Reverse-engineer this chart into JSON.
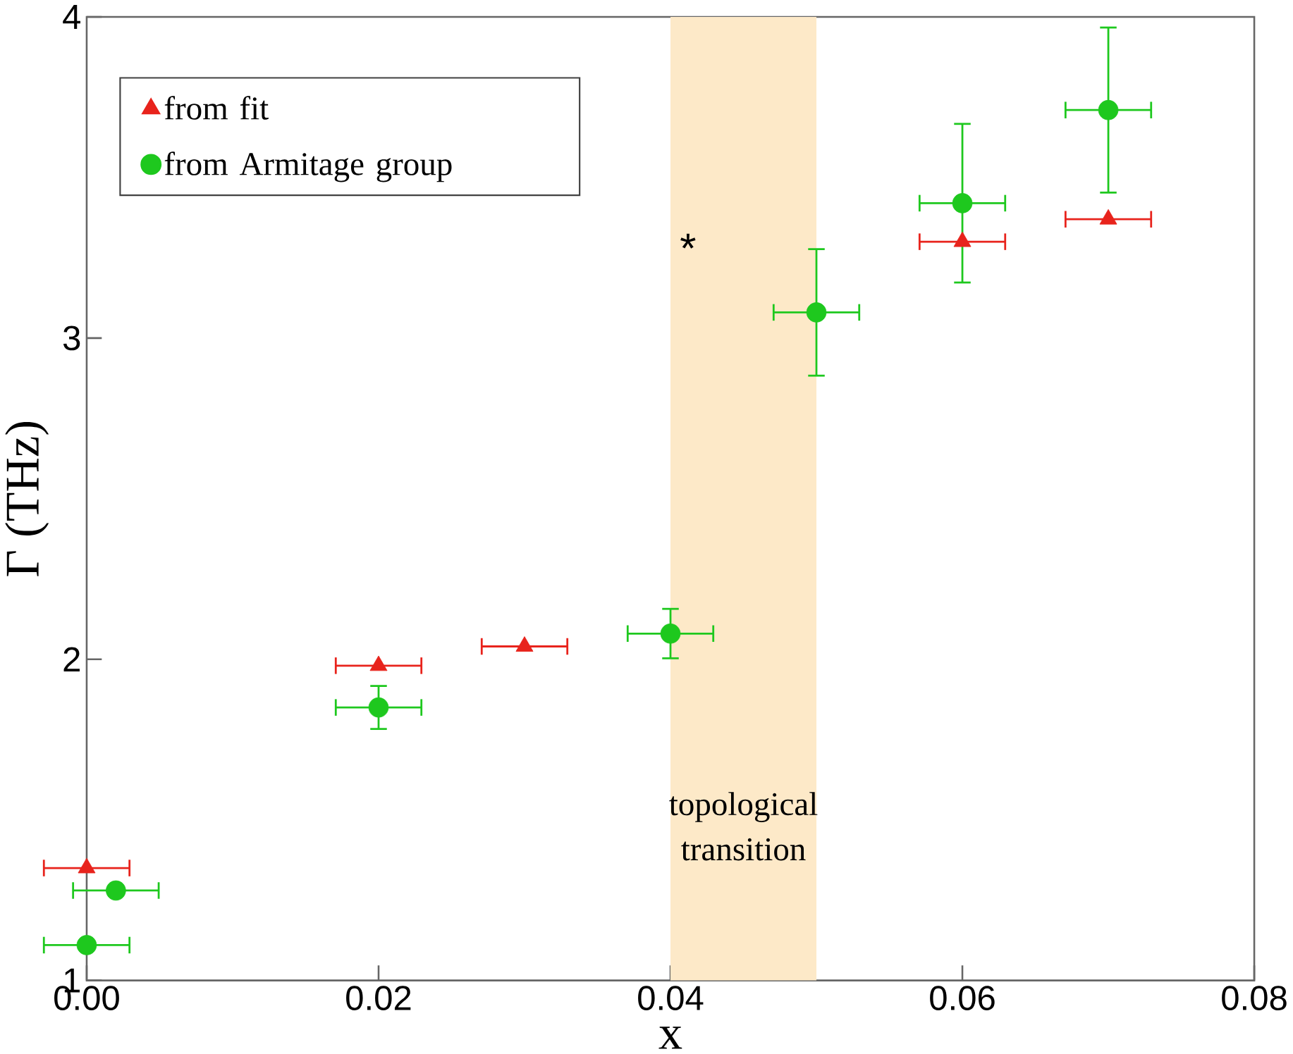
{
  "chart_data": {
    "type": "scatter",
    "xlabel": "x",
    "ylabel": "Γ (THz)",
    "xlim": [
      0,
      0.08
    ],
    "ylim": [
      1,
      4
    ],
    "xticks": [
      {
        "value": 0,
        "label": "0.00"
      },
      {
        "value": 0.02,
        "label": "0.02"
      },
      {
        "value": 0.04,
        "label": "0.04"
      },
      {
        "value": 0.06,
        "label": "0.06"
      },
      {
        "value": 0.08,
        "label": "0.08"
      }
    ],
    "yticks": [
      1,
      2,
      3,
      4
    ],
    "grid": false,
    "legend": "top left",
    "series": [
      {
        "name": "from fit",
        "color": "#e8231c",
        "marker": "triangle",
        "x": [
          0,
          0.02,
          0.03,
          0.06,
          0.07
        ],
        "values": [
          1.35,
          1.98,
          2.04,
          3.3,
          3.37
        ],
        "xerrors": [
          0.003,
          0.003,
          0.003,
          0.003,
          0.003
        ]
      },
      {
        "name": "from Armitage group",
        "color": "#1ec81e",
        "marker": "circle",
        "x": [
          0,
          0.002,
          0.02,
          0.04,
          0.05,
          0.06,
          0.07
        ],
        "values": [
          1.11,
          1.28,
          1.85,
          2.08,
          3.08,
          3.42,
          3.71
        ],
        "errors": [
          null,
          null,
          0.07,
          0.08,
          0.2,
          0.25,
          0.26
        ],
        "xerrors": [
          0.003,
          0.003,
          0.003,
          0.003,
          0.003,
          0.003,
          0.003
        ]
      }
    ],
    "bands": [
      {
        "axis": "x",
        "from": 0.04,
        "to": 0.05,
        "label": "topological transition",
        "color": "#fde9c8"
      }
    ],
    "annotations": [
      "*"
    ]
  }
}
